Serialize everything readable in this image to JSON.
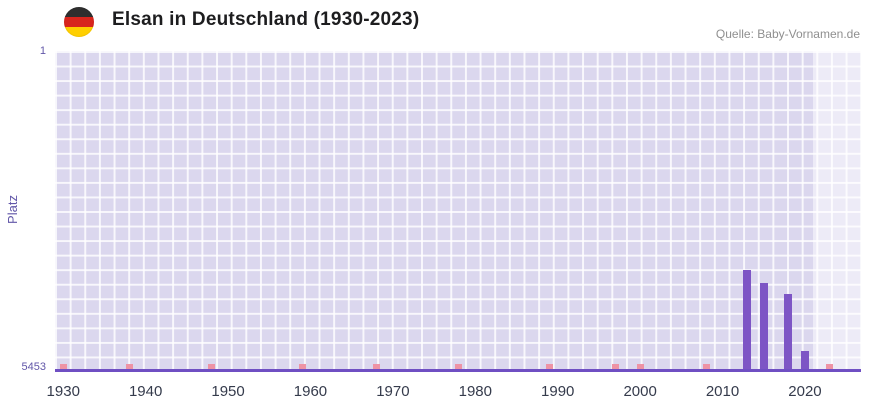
{
  "header": {
    "title": "Elsan in Deutschland (1930-2023)",
    "source": "Quelle: Baby-Vornamen.de",
    "flag_icon": "germany-flag-icon",
    "flag_colors": [
      "#2e2e2e",
      "#d8251d",
      "#ffcf00"
    ]
  },
  "chart_data": {
    "type": "bar",
    "title": "Elsan in Deutschland (1930-2023)",
    "ylabel": "Platz",
    "y_axis": {
      "top_label": "1",
      "bottom_label": "5453",
      "min": 1,
      "max": 5453,
      "inverted": true
    },
    "x_axis": {
      "tick_years": [
        1930,
        1940,
        1950,
        1960,
        1970,
        1980,
        1990,
        2000,
        2010,
        2020
      ],
      "range": [
        1929,
        2026.8
      ]
    },
    "bars": [
      {
        "year": 2013,
        "rank": 3760
      },
      {
        "year": 2015,
        "rank": 3980
      },
      {
        "year": 2018,
        "rank": 4170
      },
      {
        "year": 2020,
        "rank": 5140
      }
    ],
    "baseline_markers": {
      "years": [
        1930,
        1938,
        1948,
        1959,
        1968,
        1978,
        1989,
        1997,
        2000,
        2008,
        2023
      ]
    },
    "highlight_band": {
      "from_year": 2021,
      "to_year": 2026.8
    },
    "grid": true,
    "legend": "none",
    "colors": {
      "bar": "#7d55c5",
      "marker": "#ee93a5",
      "plot_background": "#dbd7ee",
      "grid_line": "#ffffff",
      "axis_line": "#6f4fc3",
      "axis_text": "#6156a8",
      "band": "rgba(255,255,255,0.5)"
    }
  }
}
